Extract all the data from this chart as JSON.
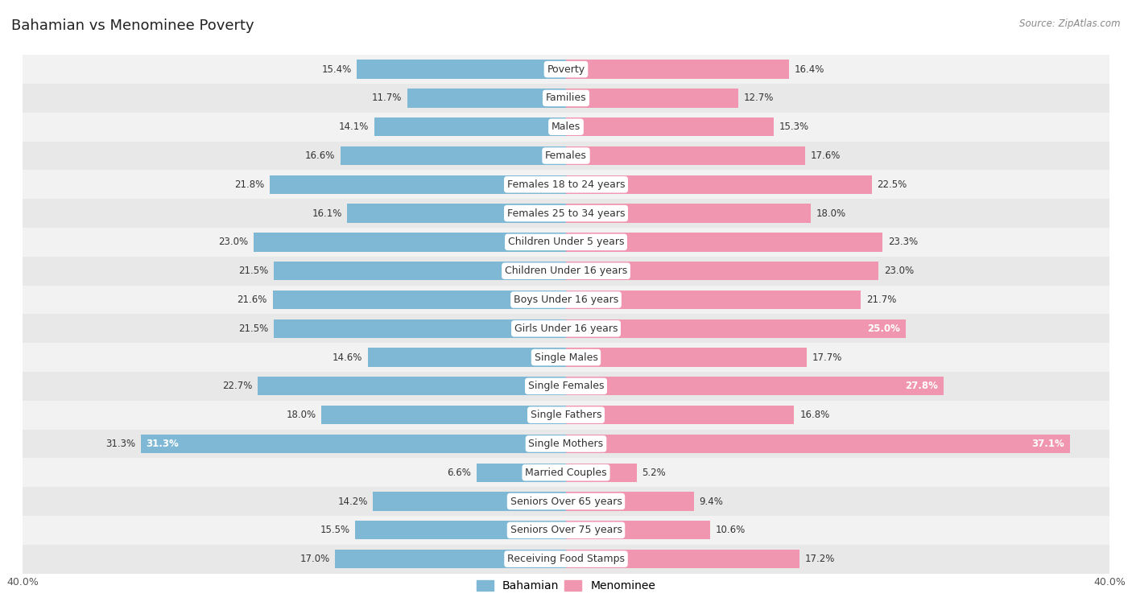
{
  "title": "Bahamian vs Menominee Poverty",
  "source": "Source: ZipAtlas.com",
  "categories": [
    "Poverty",
    "Families",
    "Males",
    "Females",
    "Females 18 to 24 years",
    "Females 25 to 34 years",
    "Children Under 5 years",
    "Children Under 16 years",
    "Boys Under 16 years",
    "Girls Under 16 years",
    "Single Males",
    "Single Females",
    "Single Fathers",
    "Single Mothers",
    "Married Couples",
    "Seniors Over 65 years",
    "Seniors Over 75 years",
    "Receiving Food Stamps"
  ],
  "bahamian": [
    15.4,
    11.7,
    14.1,
    16.6,
    21.8,
    16.1,
    23.0,
    21.5,
    21.6,
    21.5,
    14.6,
    22.7,
    18.0,
    31.3,
    6.6,
    14.2,
    15.5,
    17.0
  ],
  "menominee": [
    16.4,
    12.7,
    15.3,
    17.6,
    22.5,
    18.0,
    23.3,
    23.0,
    21.7,
    25.0,
    17.7,
    27.8,
    16.8,
    37.1,
    5.2,
    9.4,
    10.6,
    17.2
  ],
  "bahamian_color": "#7eb8d4",
  "menominee_color": "#f096b0",
  "row_bg_even": "#f2f2f2",
  "row_bg_odd": "#e8e8e8",
  "x_max": 40.0,
  "legend_labels": [
    "Bahamian",
    "Menominee"
  ],
  "title_fontsize": 13,
  "label_fontsize": 9,
  "value_fontsize": 8.5,
  "bar_height": 0.65
}
